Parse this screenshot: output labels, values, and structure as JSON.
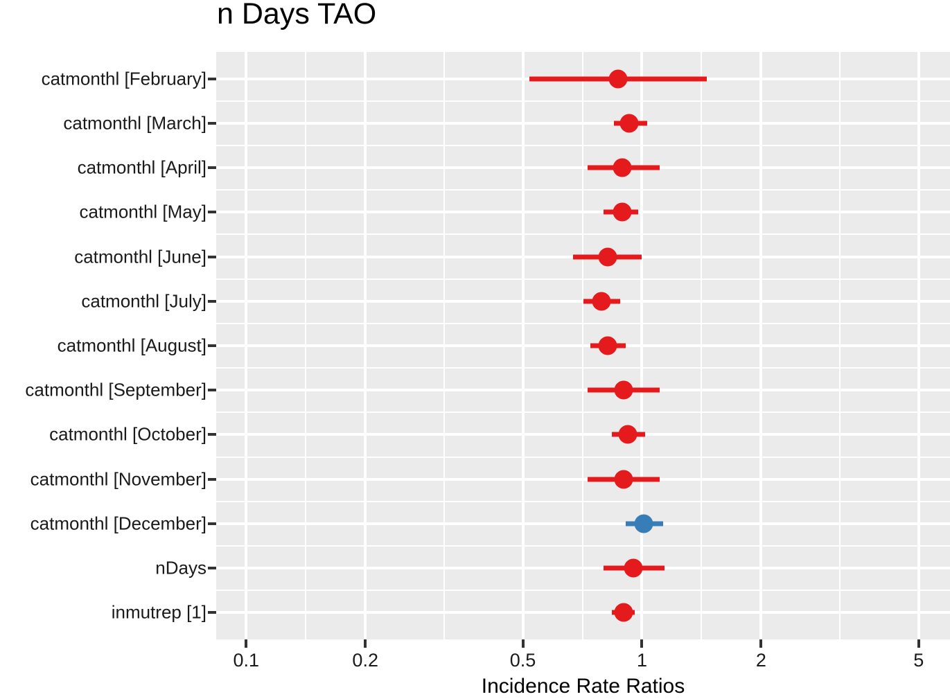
{
  "chart_data": {
    "type": "scatter",
    "variant": "forest-plot",
    "title": "n Days TAO",
    "xlabel": "Incidence Rate Ratios",
    "x_scale": "log10",
    "x_range": [
      0.084,
      6.0
    ],
    "x_ticks": [
      0.1,
      0.2,
      0.5,
      1,
      2,
      5
    ],
    "x_tick_labels": [
      "0.1",
      "0.2",
      "0.5",
      "1",
      "2",
      "5"
    ],
    "x_minor_gridlines": [
      0.1414,
      0.3162,
      0.7071,
      1.4142,
      3.1623
    ],
    "grid": "on",
    "legend": "none",
    "panel_bg": "#ebebeb",
    "grid_color": "#ffffff",
    "tick_color": "#333333",
    "colors": {
      "negative": "#e41a1c",
      "positive": "#377eb8"
    },
    "rows": [
      {
        "label": "catmonthl [February]",
        "estimate": 0.87,
        "ci_low": 0.52,
        "ci_high": 1.46,
        "direction": "negative"
      },
      {
        "label": "catmonthl [March]",
        "estimate": 0.93,
        "ci_low": 0.85,
        "ci_high": 1.03,
        "direction": "negative"
      },
      {
        "label": "catmonthl [April]",
        "estimate": 0.89,
        "ci_low": 0.73,
        "ci_high": 1.11,
        "direction": "negative"
      },
      {
        "label": "catmonthl [May]",
        "estimate": 0.89,
        "ci_low": 0.8,
        "ci_high": 0.98,
        "direction": "negative"
      },
      {
        "label": "catmonthl [June]",
        "estimate": 0.82,
        "ci_low": 0.67,
        "ci_high": 1.0,
        "direction": "negative"
      },
      {
        "label": "catmonthl [July]",
        "estimate": 0.79,
        "ci_low": 0.71,
        "ci_high": 0.88,
        "direction": "negative"
      },
      {
        "label": "catmonthl [August]",
        "estimate": 0.82,
        "ci_low": 0.74,
        "ci_high": 0.91,
        "direction": "negative"
      },
      {
        "label": "catmonthl [September]",
        "estimate": 0.9,
        "ci_low": 0.73,
        "ci_high": 1.11,
        "direction": "negative"
      },
      {
        "label": "catmonthl [October]",
        "estimate": 0.92,
        "ci_low": 0.84,
        "ci_high": 1.02,
        "direction": "negative"
      },
      {
        "label": "catmonthl [November]",
        "estimate": 0.9,
        "ci_low": 0.73,
        "ci_high": 1.11,
        "direction": "negative"
      },
      {
        "label": "catmonthl [December]",
        "estimate": 1.01,
        "ci_low": 0.91,
        "ci_high": 1.13,
        "direction": "positive"
      },
      {
        "label": "nDays",
        "estimate": 0.95,
        "ci_low": 0.8,
        "ci_high": 1.14,
        "direction": "negative"
      },
      {
        "label": "inmutrep [1]",
        "estimate": 0.9,
        "ci_low": 0.84,
        "ci_high": 0.96,
        "direction": "negative"
      }
    ]
  }
}
